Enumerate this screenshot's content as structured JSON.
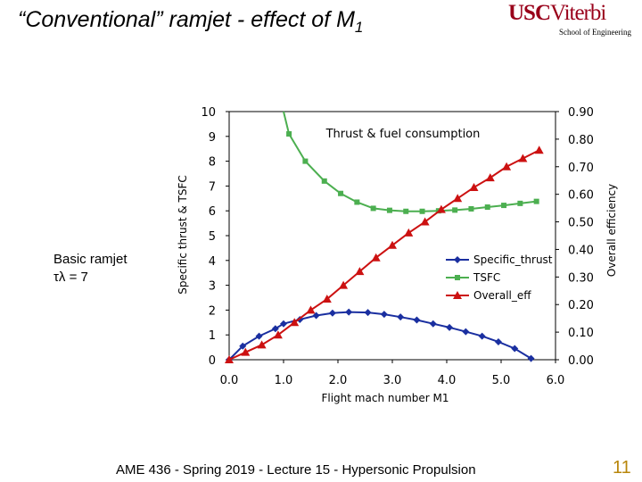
{
  "slide": {
    "title_main": "“Conventional” ramjet - effect of M",
    "title_sub": "1",
    "logo_usc": "USC",
    "logo_viterbi": "Viterbi",
    "logo_school": "School of Engineering",
    "note_line1": "Basic ramjet",
    "note_line2": "τλ = 7",
    "footer": "AME 436 - Spring 2019 - Lecture 15 - Hypersonic Propulsion",
    "page_number": "11"
  },
  "colors": {
    "specific_thrust": "#1a2fa0",
    "tsfc": "#4caf50",
    "overall_eff": "#cc1111",
    "logo": "#99001a",
    "page_number": "#b8860b"
  },
  "chart_data": {
    "type": "line",
    "title": "Thrust & fuel consumption",
    "xlabel": "Flight mach number M1",
    "ylabel_left": "Specific thrust & TSFC",
    "ylabel_right": "Overall efficiency",
    "xlim": [
      0,
      6
    ],
    "ylim_left": [
      0,
      10
    ],
    "ylim_right": [
      0,
      0.9
    ],
    "x_ticks": [
      "0.0",
      "1.0",
      "2.0",
      "3.0",
      "4.0",
      "5.0",
      "6.0"
    ],
    "y_ticks_left": [
      "0",
      "1",
      "2",
      "3",
      "4",
      "5",
      "6",
      "7",
      "8",
      "9",
      "10"
    ],
    "y_ticks_right": [
      "0.00",
      "0.10",
      "0.20",
      "0.30",
      "0.40",
      "0.50",
      "0.60",
      "0.70",
      "0.80",
      "0.90"
    ],
    "legend_position": "right-middle",
    "series": [
      {
        "name": "Specific_thrust",
        "axis": "left",
        "marker": "diamond",
        "x": [
          0,
          0.25,
          0.55,
          0.85,
          1.0,
          1.3,
          1.6,
          1.9,
          2.2,
          2.55,
          2.85,
          3.15,
          3.45,
          3.75,
          4.05,
          4.35,
          4.65,
          4.95,
          5.25,
          5.55
        ],
        "values": [
          0.0,
          0.55,
          0.95,
          1.25,
          1.45,
          1.62,
          1.78,
          1.88,
          1.92,
          1.9,
          1.83,
          1.72,
          1.6,
          1.45,
          1.3,
          1.13,
          0.95,
          0.72,
          0.45,
          0.05
        ]
      },
      {
        "name": "TSFC",
        "axis": "left",
        "marker": "square",
        "x": [
          1.1,
          1.4,
          1.75,
          2.05,
          2.35,
          2.65,
          2.95,
          3.25,
          3.55,
          3.85,
          4.15,
          4.45,
          4.75,
          5.05,
          5.35,
          5.65
        ],
        "values": [
          9.1,
          8.0,
          7.2,
          6.7,
          6.35,
          6.1,
          6.02,
          5.98,
          5.98,
          6.0,
          6.03,
          6.08,
          6.15,
          6.22,
          6.3,
          6.38
        ]
      },
      {
        "name": "Overall_eff",
        "axis": "right",
        "marker": "triangle",
        "x": [
          0,
          0.3,
          0.6,
          0.9,
          1.2,
          1.5,
          1.8,
          2.1,
          2.4,
          2.7,
          3.0,
          3.3,
          3.6,
          3.9,
          4.2,
          4.5,
          4.8,
          5.1,
          5.4,
          5.7
        ],
        "values": [
          0.0,
          0.027,
          0.054,
          0.09,
          0.135,
          0.18,
          0.22,
          0.27,
          0.32,
          0.37,
          0.415,
          0.46,
          0.5,
          0.545,
          0.585,
          0.625,
          0.66,
          0.7,
          0.73,
          0.76
        ]
      }
    ]
  }
}
